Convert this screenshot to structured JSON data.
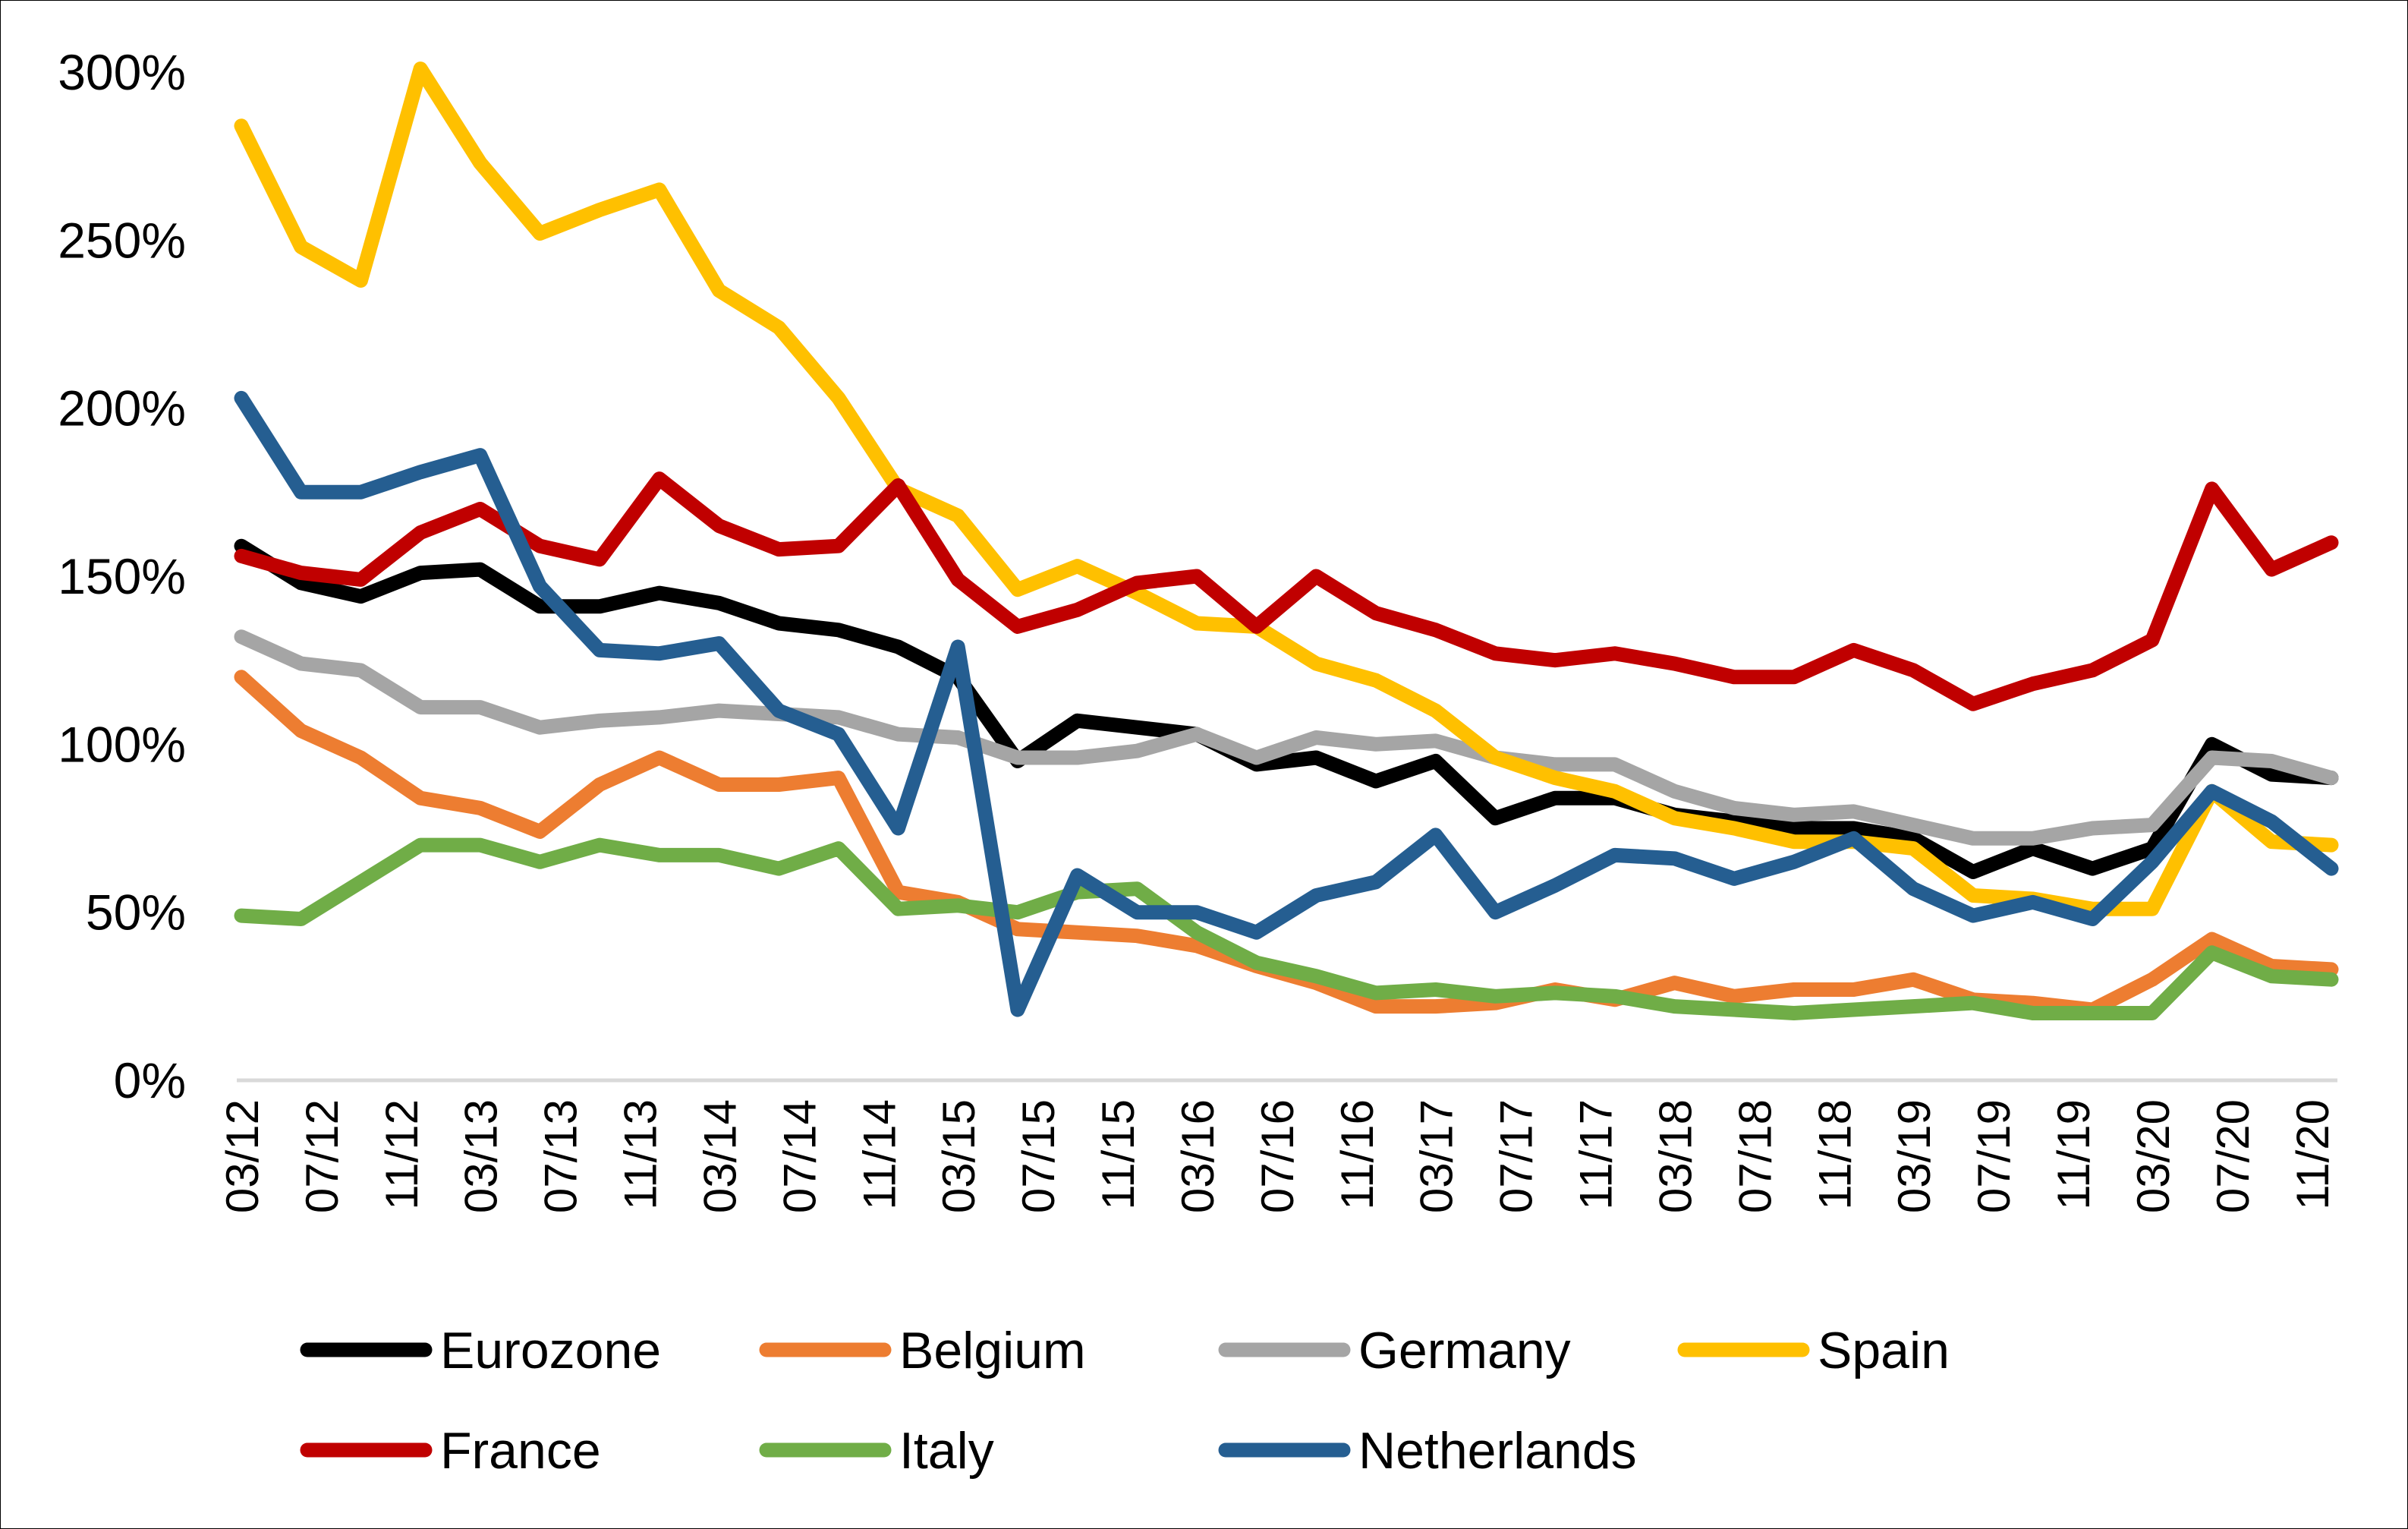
{
  "chart_data": {
    "type": "line",
    "title": "",
    "xlabel": "",
    "ylabel": "",
    "ylim": [
      0,
      300
    ],
    "y_ticks": [
      0,
      50,
      100,
      150,
      200,
      250,
      300
    ],
    "y_tick_labels": [
      "0%",
      "50%",
      "100%",
      "150%",
      "200%",
      "250%",
      "300%"
    ],
    "x_tick_labels": [
      "03/12",
      "07/12",
      "11/12",
      "03/13",
      "07/13",
      "11/13",
      "03/14",
      "07/14",
      "11/14",
      "03/15",
      "07/15",
      "11/15",
      "03/16",
      "07/16",
      "11/16",
      "03/17",
      "07/17",
      "11/17",
      "03/18",
      "07/18",
      "11/18",
      "03/19",
      "07/19",
      "11/19",
      "03/20",
      "07/20",
      "11/20"
    ],
    "x_tick_interval_months": 4,
    "point_interval_months": 3,
    "n_points": 36,
    "grid": false,
    "legend_position": "bottom",
    "series": [
      {
        "name": "Eurozone",
        "color": "#000000",
        "values": [
          159,
          148,
          144,
          151,
          152,
          141,
          141,
          145,
          142,
          136,
          134,
          129,
          120,
          95,
          107,
          105,
          103,
          94,
          96,
          89,
          95,
          78,
          84,
          84,
          79,
          77,
          75,
          75,
          72,
          62,
          69,
          63,
          69,
          100,
          91,
          90
        ]
      },
      {
        "name": "Belgium",
        "color": "#ED7D31",
        "values": [
          120,
          104,
          96,
          84,
          81,
          74,
          88,
          96,
          88,
          88,
          90,
          56,
          53,
          45,
          44,
          43,
          40,
          34,
          29,
          22,
          22,
          23,
          27,
          24,
          29,
          25,
          27,
          27,
          30,
          24,
          23,
          21,
          30,
          42,
          34,
          33
        ]
      },
      {
        "name": "Germany",
        "color": "#A5A5A5",
        "values": [
          132,
          124,
          122,
          111,
          111,
          105,
          107,
          108,
          110,
          109,
          108,
          103,
          102,
          96,
          96,
          98,
          103,
          96,
          102,
          100,
          101,
          96,
          94,
          94,
          86,
          81,
          79,
          80,
          76,
          72,
          72,
          75,
          76,
          96,
          95,
          90
        ]
      },
      {
        "name": "Spain",
        "color": "#FFC000",
        "values": [
          284,
          248,
          238,
          301,
          273,
          252,
          259,
          265,
          235,
          224,
          203,
          176,
          168,
          146,
          153,
          145,
          136,
          135,
          124,
          119,
          110,
          96,
          90,
          86,
          78,
          75,
          71,
          71,
          69,
          55,
          54,
          51,
          51,
          86,
          71,
          70
        ]
      },
      {
        "name": "France",
        "color": "#C00000",
        "values": [
          156,
          151,
          149,
          163,
          170,
          159,
          155,
          179,
          165,
          158,
          159,
          177,
          149,
          135,
          140,
          148,
          150,
          135,
          150,
          139,
          134,
          127,
          125,
          127,
          124,
          120,
          120,
          128,
          122,
          112,
          118,
          122,
          131,
          176,
          152,
          160
        ]
      },
      {
        "name": "Italy",
        "color": "#70AD47",
        "values": [
          49,
          48,
          59,
          70,
          70,
          65,
          70,
          67,
          67,
          63,
          69,
          51,
          52,
          50,
          56,
          57,
          44,
          35,
          31,
          26,
          27,
          25,
          26,
          25,
          22,
          21,
          20,
          21,
          22,
          23,
          20,
          20,
          20,
          38,
          31,
          30
        ]
      },
      {
        "name": "Netherlands",
        "color": "#255E91",
        "values": [
          203,
          175,
          175,
          181,
          186,
          147,
          128,
          127,
          130,
          110,
          103,
          75,
          129,
          21,
          61,
          50,
          50,
          44,
          55,
          59,
          73,
          50,
          58,
          67,
          66,
          60,
          65,
          72,
          57,
          49,
          53,
          48,
          65,
          86,
          77,
          63
        ]
      }
    ],
    "legend": [
      {
        "label": "Eurozone",
        "color": "#000000"
      },
      {
        "label": "Belgium",
        "color": "#ED7D31"
      },
      {
        "label": "Germany",
        "color": "#A5A5A5"
      },
      {
        "label": "Spain",
        "color": "#FFC000"
      },
      {
        "label": "France",
        "color": "#C00000"
      },
      {
        "label": "Italy",
        "color": "#70AD47"
      },
      {
        "label": "Netherlands",
        "color": "#255E91"
      }
    ],
    "axis_line_color": "#D9D9D9"
  }
}
